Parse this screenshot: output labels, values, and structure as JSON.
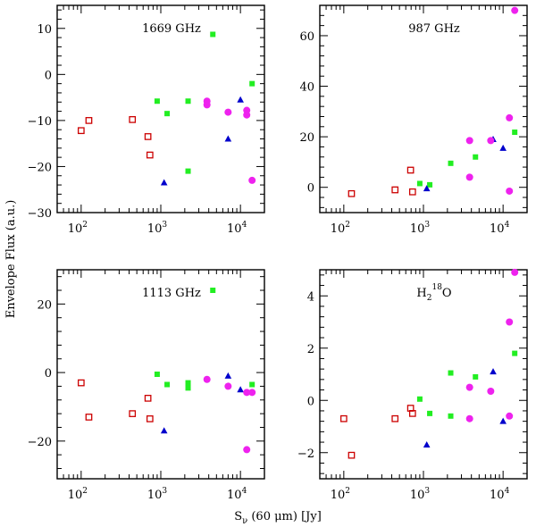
{
  "figure": {
    "ylabel": "Envelope Flux (a.u.)",
    "xlabel_main": "S",
    "xlabel_sub": "ν",
    "xlabel_rest": " (60 μm) [Jy]"
  },
  "colors": {
    "open_square": "#cc0000",
    "green_square": "#22ee22",
    "blue_triangle": "#0000cc",
    "magenta_circle": "#ee22ee"
  },
  "chart_data": [
    {
      "type": "scatter",
      "title": "1669 GHz",
      "xscale": "log",
      "xlim": [
        50,
        20000
      ],
      "ylim": [
        -30,
        15
      ],
      "xticks": [
        {
          "v": 100,
          "label": "10",
          "exp": "2"
        },
        {
          "v": 1000,
          "label": "10",
          "exp": "3"
        },
        {
          "v": 10000,
          "label": "10",
          "exp": "4"
        }
      ],
      "yticks": [
        10,
        0,
        -10,
        -20,
        -30
      ],
      "series": [
        {
          "marker": "open-square",
          "points": [
            [
              100,
              -12.2
            ],
            [
              125,
              -10.0
            ],
            [
              440,
              -9.8
            ],
            [
              690,
              -13.5
            ],
            [
              730,
              -17.5
            ]
          ]
        },
        {
          "marker": "filled-square",
          "points": [
            [
              900,
              -5.8
            ],
            [
              1200,
              -8.5
            ],
            [
              2200,
              -5.8
            ],
            [
              2200,
              -21.0
            ],
            [
              4500,
              8.7
            ],
            [
              14000,
              -2.0
            ]
          ]
        },
        {
          "marker": "triangle",
          "points": [
            [
              1100,
              -23.5
            ],
            [
              7000,
              -14.0
            ],
            [
              10000,
              -5.5
            ]
          ]
        },
        {
          "marker": "circle",
          "points": [
            [
              3800,
              -5.8
            ],
            [
              3800,
              -6.6
            ],
            [
              7000,
              -8.2
            ],
            [
              12000,
              -7.8
            ],
            [
              12000,
              -8.8
            ],
            [
              14000,
              -23.0
            ]
          ]
        }
      ]
    },
    {
      "type": "scatter",
      "title": "987 GHz",
      "xscale": "log",
      "xlim": [
        50,
        20000
      ],
      "ylim": [
        -10,
        72
      ],
      "xticks": [
        {
          "v": 100,
          "label": "10",
          "exp": "2"
        },
        {
          "v": 1000,
          "label": "10",
          "exp": "3"
        },
        {
          "v": 10000,
          "label": "10",
          "exp": "4"
        }
      ],
      "yticks": [
        60,
        40,
        20,
        0
      ],
      "series": [
        {
          "marker": "open-square",
          "points": [
            [
              125,
              -2.5
            ],
            [
              440,
              -1.0
            ],
            [
              690,
              6.8
            ],
            [
              730,
              -1.8
            ]
          ]
        },
        {
          "marker": "filled-square",
          "points": [
            [
              900,
              1.5
            ],
            [
              1200,
              1.0
            ],
            [
              2200,
              9.5
            ],
            [
              4500,
              12.0
            ],
            [
              14000,
              21.8
            ]
          ]
        },
        {
          "marker": "triangle",
          "points": [
            [
              1100,
              -0.5
            ],
            [
              7500,
              19.0
            ],
            [
              10000,
              15.5
            ]
          ]
        },
        {
          "marker": "circle",
          "points": [
            [
              3800,
              18.5
            ],
            [
              3800,
              4.0
            ],
            [
              7000,
              18.5
            ],
            [
              12000,
              27.5
            ],
            [
              12000,
              -1.5
            ],
            [
              14000,
              70.0
            ]
          ]
        }
      ]
    },
    {
      "type": "scatter",
      "title": "1113 GHz",
      "xscale": "log",
      "xlim": [
        50,
        20000
      ],
      "ylim": [
        -31,
        30
      ],
      "xticks": [
        {
          "v": 100,
          "label": "10",
          "exp": "2"
        },
        {
          "v": 1000,
          "label": "10",
          "exp": "3"
        },
        {
          "v": 10000,
          "label": "10",
          "exp": "4"
        }
      ],
      "yticks": [
        20,
        0,
        -20
      ],
      "series": [
        {
          "marker": "open-square",
          "points": [
            [
              100,
              -3.0
            ],
            [
              125,
              -13.0
            ],
            [
              440,
              -12.0
            ],
            [
              690,
              -7.5
            ],
            [
              730,
              -13.5
            ]
          ]
        },
        {
          "marker": "filled-square",
          "points": [
            [
              900,
              -0.5
            ],
            [
              1200,
              -3.5
            ],
            [
              2200,
              -3.0
            ],
            [
              2200,
              -4.5
            ],
            [
              4500,
              24.0
            ],
            [
              14000,
              -3.5
            ]
          ]
        },
        {
          "marker": "triangle",
          "points": [
            [
              1100,
              -17.0
            ],
            [
              7000,
              -1.0
            ],
            [
              10000,
              -5.0
            ]
          ]
        },
        {
          "marker": "circle",
          "points": [
            [
              3800,
              -2.0
            ],
            [
              7000,
              -4.0
            ],
            [
              12000,
              -5.8
            ],
            [
              14000,
              -5.8
            ],
            [
              12000,
              -22.5
            ]
          ]
        }
      ]
    },
    {
      "type": "scatter",
      "title": "H",
      "title_sub": "2",
      "title_sup": "18",
      "title_rest": "O",
      "xscale": "log",
      "xlim": [
        50,
        20000
      ],
      "ylim": [
        -3,
        5
      ],
      "xticks": [
        {
          "v": 100,
          "label": "10",
          "exp": "2"
        },
        {
          "v": 1000,
          "label": "10",
          "exp": "3"
        },
        {
          "v": 10000,
          "label": "10",
          "exp": "4"
        }
      ],
      "yticks": [
        4,
        2,
        0,
        -2
      ],
      "series": [
        {
          "marker": "open-square",
          "points": [
            [
              100,
              -0.7
            ],
            [
              125,
              -2.1
            ],
            [
              440,
              -0.7
            ],
            [
              690,
              -0.3
            ],
            [
              730,
              -0.5
            ]
          ]
        },
        {
          "marker": "filled-square",
          "points": [
            [
              900,
              0.05
            ],
            [
              1200,
              -0.5
            ],
            [
              2200,
              1.05
            ],
            [
              2200,
              -0.6
            ],
            [
              4500,
              0.9
            ],
            [
              14000,
              1.8
            ]
          ]
        },
        {
          "marker": "triangle",
          "points": [
            [
              1100,
              -1.7
            ],
            [
              7500,
              1.1
            ],
            [
              10000,
              -0.8
            ]
          ]
        },
        {
          "marker": "circle",
          "points": [
            [
              3800,
              0.5
            ],
            [
              3800,
              -0.7
            ],
            [
              7000,
              0.35
            ],
            [
              12000,
              3.0
            ],
            [
              12000,
              -0.6
            ],
            [
              14000,
              4.9
            ]
          ]
        }
      ]
    }
  ]
}
